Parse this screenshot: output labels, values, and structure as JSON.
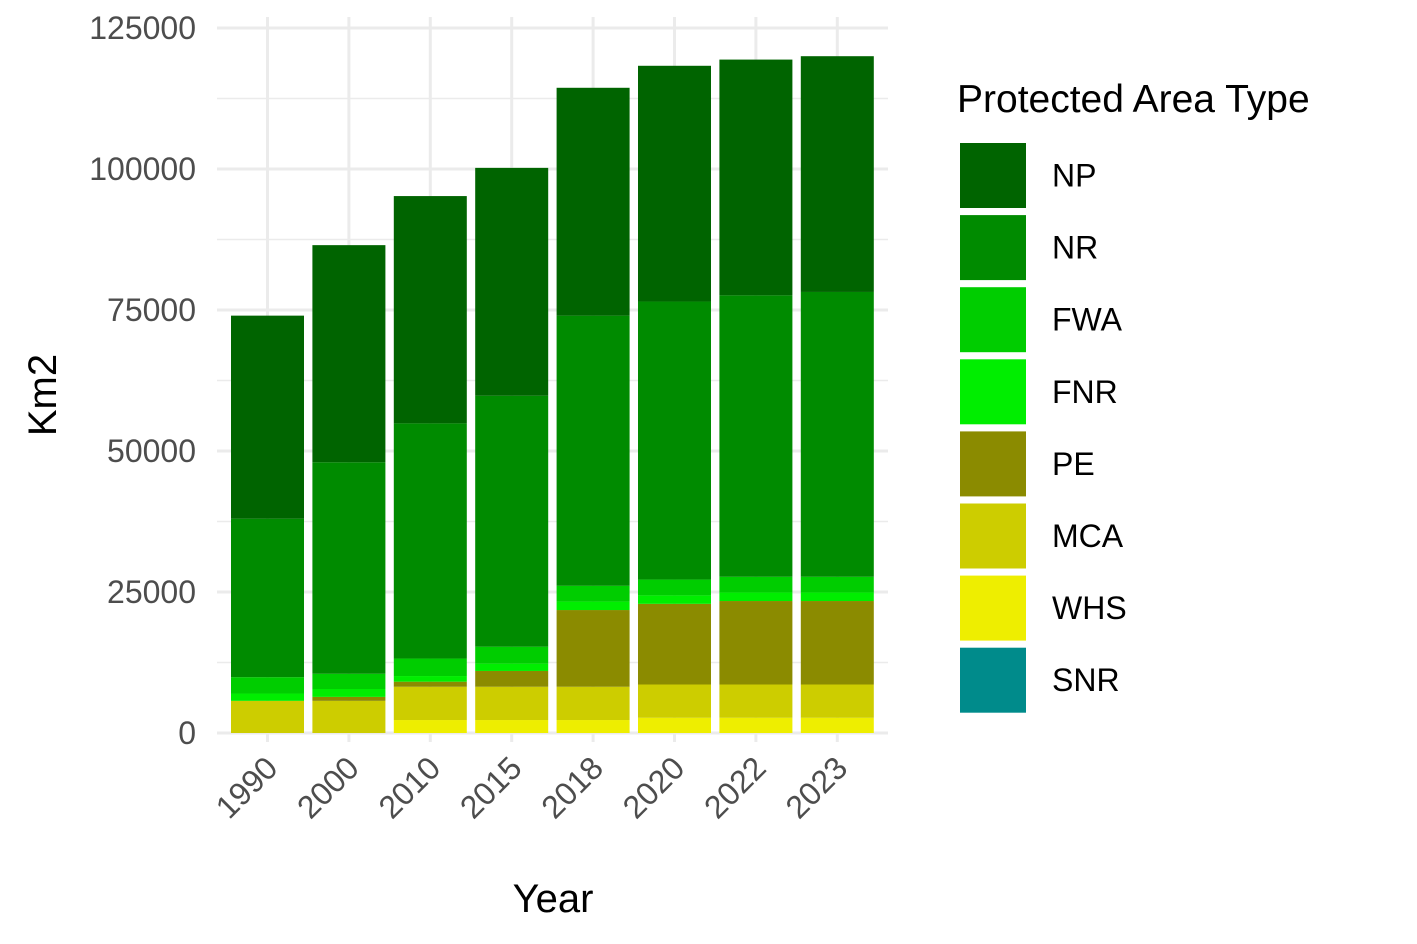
{
  "chart_data": {
    "type": "bar",
    "stacked": true,
    "categories": [
      "1990",
      "2000",
      "2010",
      "2015",
      "2018",
      "2020",
      "2022",
      "2023"
    ],
    "series": [
      {
        "name": "SNR",
        "color": "#008B8B",
        "values": [
          0,
          0,
          0,
          0,
          0,
          0,
          0,
          0
        ]
      },
      {
        "name": "WHS",
        "color": "#EEEE00",
        "values": [
          0,
          0,
          2300,
          2300,
          2300,
          2700,
          2700,
          2700
        ]
      },
      {
        "name": "MCA",
        "color": "#CDCD00",
        "values": [
          5700,
          5700,
          5900,
          5900,
          5900,
          5900,
          5900,
          5900
        ]
      },
      {
        "name": "PE",
        "color": "#8B8B00",
        "values": [
          0,
          700,
          900,
          2800,
          13600,
          14300,
          14800,
          14800
        ]
      },
      {
        "name": "FNR",
        "color": "#00EE00",
        "values": [
          1300,
          1400,
          1000,
          1300,
          1500,
          1500,
          1500,
          1500
        ]
      },
      {
        "name": "FWA",
        "color": "#00CD00",
        "values": [
          2900,
          2700,
          3100,
          3000,
          2800,
          2800,
          2800,
          2800
        ]
      },
      {
        "name": "NR",
        "color": "#008B00",
        "values": [
          28100,
          37500,
          41700,
          44500,
          47900,
          49300,
          49900,
          50500
        ]
      },
      {
        "name": "NP",
        "color": "#006400",
        "values": [
          36000,
          38500,
          40300,
          40400,
          40400,
          41800,
          41800,
          41800
        ]
      }
    ],
    "title": "",
    "xlabel": "Year",
    "ylabel": "Km2",
    "ylim": [
      0,
      125000
    ],
    "yticks": [
      "0",
      "25000",
      "50000",
      "75000",
      "100000",
      "125000"
    ],
    "grid": true,
    "legend": {
      "title": "Protected Area Type",
      "placement": "right",
      "items": [
        "NP",
        "NR",
        "FWA",
        "FNR",
        "PE",
        "MCA",
        "WHS",
        "SNR"
      ]
    }
  }
}
